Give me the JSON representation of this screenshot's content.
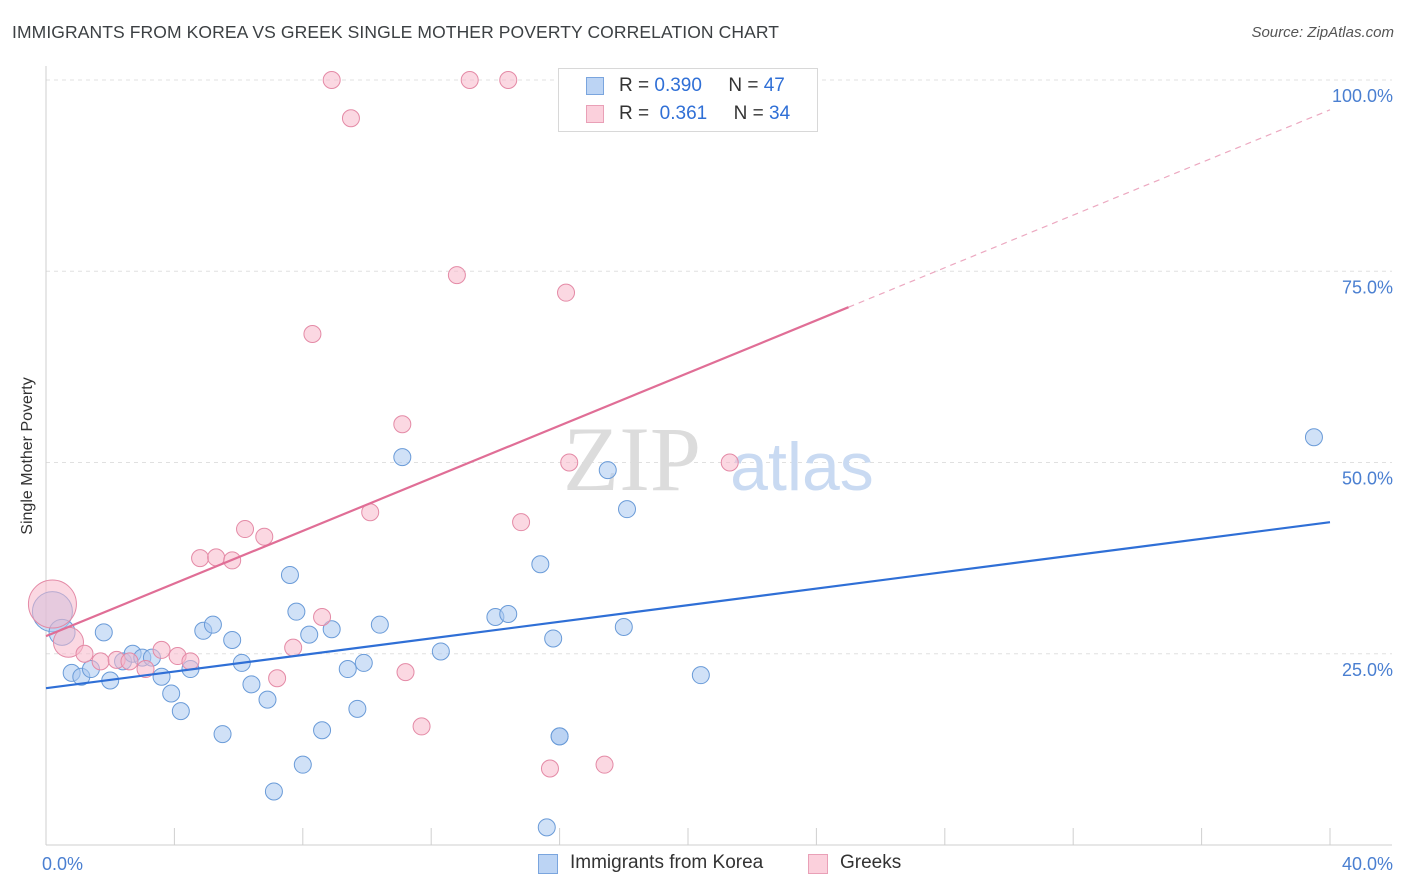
{
  "header": {
    "title": "IMMIGRANTS FROM KOREA VS GREEK SINGLE MOTHER POVERTY CORRELATION CHART",
    "source": "Source: ZipAtlas.com"
  },
  "legend": {
    "rows": [
      {
        "r_label": "R =",
        "r_value": "0.390",
        "n_label": "N =",
        "n_value": "47",
        "color": "#a9c8f0"
      },
      {
        "r_label": "R =",
        "r_value": "0.361",
        "n_label": "N =",
        "n_value": "34",
        "color": "#f7b8cb"
      }
    ]
  },
  "watermark": {
    "zip": "ZIP",
    "atlas": "atlas"
  },
  "chart_data": {
    "type": "scatter",
    "ylabel": "Single Mother Poverty",
    "xlim": [
      0,
      40
    ],
    "ylim": [
      0,
      100
    ],
    "x_ticks": [
      "0.0%",
      "40.0%"
    ],
    "y_ticks": [
      {
        "value": 25,
        "label": "25.0%"
      },
      {
        "value": 50,
        "label": "50.0%"
      },
      {
        "value": 75,
        "label": "75.0%"
      },
      {
        "value": 100,
        "label": "100.0%"
      }
    ],
    "grid": "horizontal dashed",
    "series": [
      {
        "name": "Immigrants from Korea",
        "color": "#a9c8f0",
        "edge": "#6a9bd8",
        "line_color": "#2f6fd6",
        "trend": {
          "x0": 0,
          "y0": 20.5,
          "x1": 40,
          "y1": 42.2,
          "dash_from": null
        },
        "points": [
          [
            0.2,
            30.5
          ],
          [
            0.5,
            27.8
          ],
          [
            0.8,
            22.5
          ],
          [
            1.1,
            22.0
          ],
          [
            1.4,
            23.0
          ],
          [
            1.8,
            27.8
          ],
          [
            2.0,
            21.5
          ],
          [
            2.4,
            24.0
          ],
          [
            2.7,
            25.0
          ],
          [
            3.0,
            24.5
          ],
          [
            3.3,
            24.5
          ],
          [
            3.6,
            22.0
          ],
          [
            3.9,
            19.8
          ],
          [
            4.2,
            17.5
          ],
          [
            4.5,
            23.0
          ],
          [
            4.9,
            28.0
          ],
          [
            5.2,
            28.8
          ],
          [
            5.5,
            14.5
          ],
          [
            5.8,
            26.8
          ],
          [
            6.1,
            23.8
          ],
          [
            6.4,
            21.0
          ],
          [
            6.9,
            19.0
          ],
          [
            7.1,
            7.0
          ],
          [
            7.6,
            35.3
          ],
          [
            7.8,
            30.5
          ],
          [
            8.0,
            10.5
          ],
          [
            8.2,
            27.5
          ],
          [
            8.6,
            15.0
          ],
          [
            8.9,
            28.2
          ],
          [
            9.4,
            23.0
          ],
          [
            9.7,
            17.8
          ],
          [
            9.9,
            23.8
          ],
          [
            10.4,
            28.8
          ],
          [
            11.1,
            50.7
          ],
          [
            12.3,
            25.3
          ],
          [
            14.0,
            29.8
          ],
          [
            14.4,
            30.2
          ],
          [
            15.4,
            36.7
          ],
          [
            15.6,
            2.3
          ],
          [
            15.8,
            27.0
          ],
          [
            16.0,
            14.2
          ],
          [
            16.0,
            14.2
          ],
          [
            17.5,
            49.0
          ],
          [
            18.0,
            28.5
          ],
          [
            18.1,
            43.9
          ],
          [
            20.4,
            22.2
          ],
          [
            39.5,
            53.3
          ]
        ],
        "sizes": {
          "0": 20,
          "1": 13
        }
      },
      {
        "name": "Greeks",
        "color": "#f7b8cb",
        "edge": "#e48aa6",
        "line_color": "#e06e96",
        "trend": {
          "x0": 0,
          "y0": 27.3,
          "x1": 25,
          "y1": 70.3,
          "dash_to": 40,
          "dash_y": 96.1
        },
        "points": [
          [
            0.2,
            31.5
          ],
          [
            0.7,
            26.5
          ],
          [
            1.2,
            25.0
          ],
          [
            1.7,
            24.0
          ],
          [
            2.2,
            24.2
          ],
          [
            2.6,
            24.0
          ],
          [
            3.1,
            23.0
          ],
          [
            3.6,
            25.5
          ],
          [
            4.1,
            24.7
          ],
          [
            4.5,
            24.0
          ],
          [
            4.8,
            37.5
          ],
          [
            5.3,
            37.6
          ],
          [
            5.8,
            37.2
          ],
          [
            6.2,
            41.3
          ],
          [
            6.8,
            40.3
          ],
          [
            7.2,
            21.8
          ],
          [
            7.7,
            25.8
          ],
          [
            8.3,
            66.8
          ],
          [
            8.6,
            29.8
          ],
          [
            8.9,
            100.0
          ],
          [
            9.5,
            95.0
          ],
          [
            10.1,
            43.5
          ],
          [
            11.1,
            55.0
          ],
          [
            11.2,
            22.6
          ],
          [
            11.7,
            15.5
          ],
          [
            12.8,
            74.5
          ],
          [
            13.2,
            100.0
          ],
          [
            14.4,
            100.0
          ],
          [
            14.8,
            42.2
          ],
          [
            15.7,
            10.0
          ],
          [
            16.2,
            72.2
          ],
          [
            16.3,
            50.0
          ],
          [
            17.4,
            10.5
          ],
          [
            21.3,
            50.0
          ]
        ],
        "sizes": {
          "0": 24,
          "1": 15
        }
      }
    ]
  },
  "bottom_legend": [
    {
      "label": "Immigrants from Korea",
      "color": "#a9c8f0",
      "edge": "#6a9bd8"
    },
    {
      "label": "Greeks",
      "color": "#f7b8cb",
      "edge": "#e48aa6"
    }
  ]
}
